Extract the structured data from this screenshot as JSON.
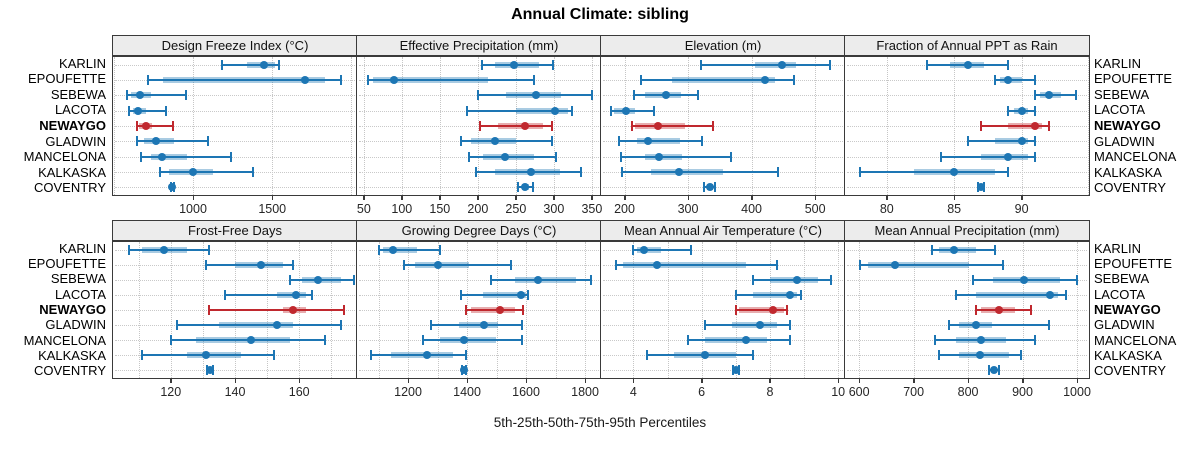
{
  "header": {
    "title": "Annual Climate: sibling"
  },
  "footer": {
    "caption": "5th-25th-50th-75th-95th Percentiles"
  },
  "chart_data": {
    "type": "dotplot",
    "title": "Annual Climate: sibling",
    "xlabel": "5th-25th-50th-75th-95th Percentiles",
    "percentiles": [
      5,
      25,
      50,
      75,
      95
    ],
    "grid": "dotted",
    "legend_position": "none",
    "categories": [
      "KARLIN",
      "EPOUFETTE",
      "SEBEWA",
      "LACOTA",
      "NEWAYGO",
      "GLADWIN",
      "MANCELONA",
      "KALKASKA",
      "COVENTRY"
    ],
    "highlight_category": "NEWAYGO",
    "colors": {
      "series": "#1d76b4",
      "series_band": "rgba(29,118,180,0.38)",
      "highlight": "#c0282e",
      "highlight_band": "rgba(192,40,46,0.38)",
      "grid": "#c6c6c6",
      "panel_border": "#3a3a3a",
      "strip_bg": "#ececec"
    },
    "panels": [
      {
        "title": "Design Freeze Index (°C)",
        "xlim": [
          495,
          2035
        ],
        "ticks": [
          1000,
          1500
        ],
        "gridlines": [
          500,
          1000,
          1500,
          2000
        ],
        "data": [
          [
            1180,
            1340,
            1450,
            1520,
            1540
          ],
          [
            714,
            808,
            1708,
            1830,
            1937
          ],
          [
            583,
            608,
            664,
            733,
            956
          ],
          [
            598,
            619,
            650,
            702,
            831
          ],
          [
            646,
            660,
            706,
            744,
            875
          ],
          [
            644,
            692,
            767,
            879,
            1092
          ],
          [
            671,
            733,
            806,
            962,
            1237
          ],
          [
            792,
            848,
            1000,
            1125,
            1379
          ],
          [
            860,
            865,
            869,
            873,
            877
          ]
        ]
      },
      {
        "title": "Effective Precipitation (mm)",
        "xlim": [
          41,
          362
        ],
        "ticks": [
          50,
          100,
          150,
          200,
          250,
          300,
          350
        ],
        "gridlines": [
          50,
          100,
          150,
          200,
          250,
          300,
          350
        ],
        "data": [
          [
            205,
            223,
            248,
            281,
            299
          ],
          [
            56,
            62,
            90,
            213,
            274
          ],
          [
            200,
            237,
            277,
            310,
            350
          ],
          [
            186,
            250,
            301,
            318,
            324
          ],
          [
            203,
            227,
            262,
            286,
            298
          ],
          [
            178,
            191,
            222,
            250,
            297
          ],
          [
            188,
            207,
            236,
            274,
            303
          ],
          [
            198,
            223,
            270,
            308,
            336
          ],
          [
            253,
            258,
            262,
            267,
            272
          ]
        ]
      },
      {
        "title": "Elevation (m)",
        "xlim": [
          163,
          547
        ],
        "ticks": [
          200,
          300,
          400,
          500
        ],
        "gridlines": [
          200,
          300,
          400,
          500
        ],
        "data": [
          [
            320,
            405,
            448,
            470,
            524
          ],
          [
            226,
            274,
            421,
            437,
            467
          ],
          [
            215,
            232,
            265,
            289,
            316
          ],
          [
            179,
            184,
            202,
            216,
            247
          ],
          [
            212,
            216,
            253,
            295,
            339
          ],
          [
            191,
            220,
            237,
            288,
            322
          ],
          [
            195,
            232,
            255,
            291,
            368
          ],
          [
            196,
            241,
            286,
            355,
            441
          ],
          [
            325,
            330,
            334,
            339,
            343
          ]
        ]
      },
      {
        "title": "Fraction of Annual PPT as Rain",
        "xlim": [
          76.9,
          95
        ],
        "ticks": [
          80,
          85,
          90
        ],
        "gridlines": [
          80,
          85,
          90,
          95
        ],
        "data": [
          [
            83,
            84.7,
            86,
            87.2,
            89
          ],
          [
            88,
            88.4,
            89,
            90,
            91
          ],
          [
            91,
            91.4,
            92,
            92.9,
            94
          ],
          [
            89,
            89.4,
            90,
            90.5,
            91
          ],
          [
            87,
            89,
            91,
            91.5,
            92
          ],
          [
            86,
            88,
            90,
            90.5,
            91
          ],
          [
            84,
            87,
            89,
            90.5,
            91
          ],
          [
            78,
            82,
            85,
            88,
            89
          ],
          [
            86.8,
            86.9,
            87,
            87.1,
            87.2
          ]
        ]
      },
      {
        "title": "Frost-Free Days",
        "xlim": [
          102,
          178
        ],
        "ticks": [
          120,
          140,
          160
        ],
        "gridlines": [
          110,
          120,
          130,
          140,
          150,
          160,
          170
        ],
        "data": [
          [
            107,
            111,
            118,
            125,
            132
          ],
          [
            131,
            140,
            148,
            155,
            158
          ],
          [
            157,
            161,
            166,
            173,
            177
          ],
          [
            137,
            153,
            159,
            162,
            164
          ],
          [
            132,
            155,
            158,
            162,
            174
          ],
          [
            122,
            135,
            153,
            158,
            173
          ],
          [
            120,
            128,
            145,
            157,
            168
          ],
          [
            111,
            125,
            131,
            142,
            152
          ],
          [
            131.4,
            131.8,
            132.2,
            132.6,
            133
          ]
        ]
      },
      {
        "title": "Growing Degree Days (°C)",
        "xlim": [
          1027,
          1854
        ],
        "ticks": [
          1200,
          1400,
          1600,
          1800
        ],
        "gridlines": [
          1100,
          1200,
          1300,
          1400,
          1500,
          1600,
          1700,
          1800
        ],
        "data": [
          [
            1100,
            1114,
            1150,
            1230,
            1308
          ],
          [
            1187,
            1223,
            1300,
            1408,
            1548
          ],
          [
            1480,
            1562,
            1640,
            1768,
            1819
          ],
          [
            1379,
            1454,
            1583,
            1600,
            1608
          ],
          [
            1396,
            1414,
            1510,
            1562,
            1589
          ],
          [
            1279,
            1374,
            1457,
            1505,
            1585
          ],
          [
            1251,
            1309,
            1391,
            1499,
            1585
          ],
          [
            1073,
            1142,
            1263,
            1351,
            1397
          ],
          [
            1383,
            1387,
            1390,
            1393,
            1396
          ]
        ]
      },
      {
        "title": "Mean Annual Air Temperature (°C)",
        "xlim": [
          3.05,
          10.2
        ],
        "ticks": [
          4,
          6,
          8,
          10
        ],
        "gridlines": [
          4,
          5,
          6,
          7,
          8,
          9,
          10
        ],
        "data": [
          [
            4.0,
            4.1,
            4.3,
            4.8,
            5.7
          ],
          [
            3.5,
            3.7,
            4.7,
            7.3,
            8.2
          ],
          [
            7.5,
            8.0,
            8.8,
            9.4,
            9.8
          ],
          [
            7.0,
            7.5,
            8.6,
            8.8,
            8.9
          ],
          [
            7.0,
            7.1,
            8.1,
            8.4,
            8.5
          ],
          [
            6.1,
            6.9,
            7.7,
            8.2,
            8.6
          ],
          [
            5.6,
            6.1,
            7.3,
            7.9,
            8.6
          ],
          [
            4.4,
            5.2,
            6.1,
            7.0,
            7.5
          ],
          [
            6.92,
            6.96,
            7.0,
            7.04,
            7.08
          ]
        ]
      },
      {
        "title": "Mean Annual Precipitation (mm)",
        "xlim": [
          574,
          1022
        ],
        "ticks": [
          600,
          700,
          800,
          900,
          1000
        ],
        "gridlines": [
          600,
          700,
          800,
          900,
          1000
        ],
        "data": [
          [
            733,
            747,
            775,
            815,
            850
          ],
          [
            602,
            617,
            665,
            802,
            865
          ],
          [
            809,
            846,
            903,
            969,
            1000
          ],
          [
            778,
            815,
            950,
            965,
            980
          ],
          [
            815,
            824,
            857,
            886,
            915
          ],
          [
            765,
            784,
            815,
            843,
            949
          ],
          [
            739,
            778,
            823,
            870,
            923
          ],
          [
            747,
            784,
            822,
            876,
            898
          ],
          [
            838,
            843,
            848,
            852,
            857
          ]
        ]
      }
    ]
  }
}
